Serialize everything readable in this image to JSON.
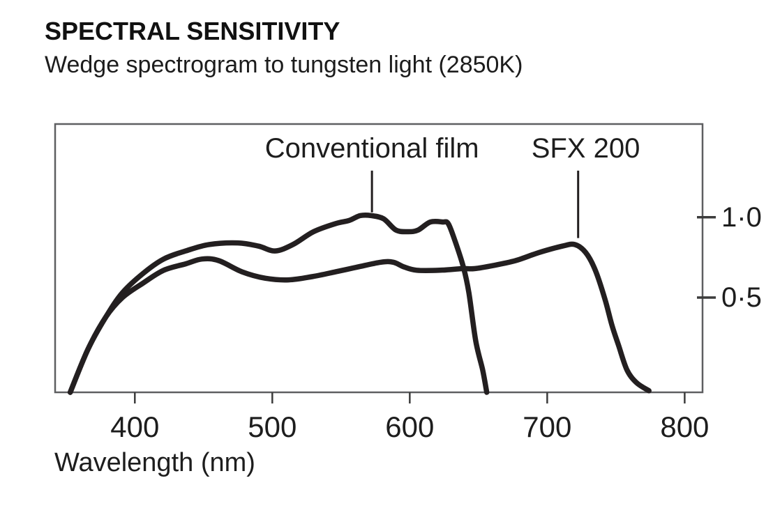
{
  "header": {
    "title": "SPECTRAL SENSITIVITY",
    "subtitle": "Wedge spectrogram to tungsten light (2850K)"
  },
  "chart_data": {
    "type": "line",
    "title": "SPECTRAL SENSITIVITY",
    "subtitle": "Wedge spectrogram to tungsten light (2850K)",
    "xlabel": "Wavelength (nm)",
    "ylabel": "",
    "grid": false,
    "x_range": [
      342,
      813
    ],
    "y_range": [
      -0.09,
      1.58
    ],
    "x_ticks": [
      400,
      500,
      600,
      700,
      800
    ],
    "y_ticks": [
      {
        "value": 1.0,
        "label": "1·0"
      },
      {
        "value": 0.5,
        "label": "0·5"
      }
    ],
    "line_color": "#231f20",
    "frame_color": "#5e5f61",
    "tick_color": "#3c3c3c",
    "series": [
      {
        "id": "conventional-film",
        "name": "Conventional film",
        "label_center_nm": 572.5,
        "leader_nm": 572.5,
        "leader_from": 1.29,
        "leader_to": 1.03,
        "points": [
          [
            353,
            -0.09
          ],
          [
            366,
            0.18
          ],
          [
            379,
            0.38
          ],
          [
            391,
            0.53
          ],
          [
            406,
            0.65
          ],
          [
            421,
            0.74
          ],
          [
            437,
            0.79
          ],
          [
            454,
            0.83
          ],
          [
            475,
            0.84
          ],
          [
            490,
            0.82
          ],
          [
            502,
            0.79
          ],
          [
            515,
            0.83
          ],
          [
            530,
            0.91
          ],
          [
            546,
            0.96
          ],
          [
            556,
            0.98
          ],
          [
            564,
            1.01
          ],
          [
            572,
            1.01
          ],
          [
            581,
            0.99
          ],
          [
            590,
            0.92
          ],
          [
            599,
            0.91
          ],
          [
            606,
            0.92
          ],
          [
            615,
            0.97
          ],
          [
            624,
            0.97
          ],
          [
            628,
            0.96
          ],
          [
            633,
            0.85
          ],
          [
            639,
            0.69
          ],
          [
            643,
            0.53
          ],
          [
            648,
            0.23
          ],
          [
            653,
            0.05
          ],
          [
            656,
            -0.09
          ]
        ]
      },
      {
        "id": "sfx-200",
        "name": "SFX 200",
        "label_center_nm": 728,
        "leader_nm": 722.5,
        "leader_from": 1.29,
        "leader_to": 0.87,
        "points": [
          [
            353,
            -0.09
          ],
          [
            366,
            0.18
          ],
          [
            379,
            0.38
          ],
          [
            391,
            0.5
          ],
          [
            406,
            0.59
          ],
          [
            421,
            0.67
          ],
          [
            437,
            0.71
          ],
          [
            449,
            0.74
          ],
          [
            461,
            0.73
          ],
          [
            478,
            0.66
          ],
          [
            495,
            0.62
          ],
          [
            512,
            0.61
          ],
          [
            529,
            0.63
          ],
          [
            546,
            0.66
          ],
          [
            562,
            0.69
          ],
          [
            579,
            0.72
          ],
          [
            588,
            0.72
          ],
          [
            596,
            0.69
          ],
          [
            605,
            0.67
          ],
          [
            622,
            0.67
          ],
          [
            638,
            0.68
          ],
          [
            647,
            0.68
          ],
          [
            661,
            0.7
          ],
          [
            677,
            0.73
          ],
          [
            694,
            0.78
          ],
          [
            711,
            0.82
          ],
          [
            720,
            0.83
          ],
          [
            728,
            0.78
          ],
          [
            735,
            0.67
          ],
          [
            742,
            0.49
          ],
          [
            747,
            0.33
          ],
          [
            752,
            0.2
          ],
          [
            758,
            0.05
          ],
          [
            765,
            -0.03
          ],
          [
            774,
            -0.08
          ]
        ]
      }
    ]
  }
}
